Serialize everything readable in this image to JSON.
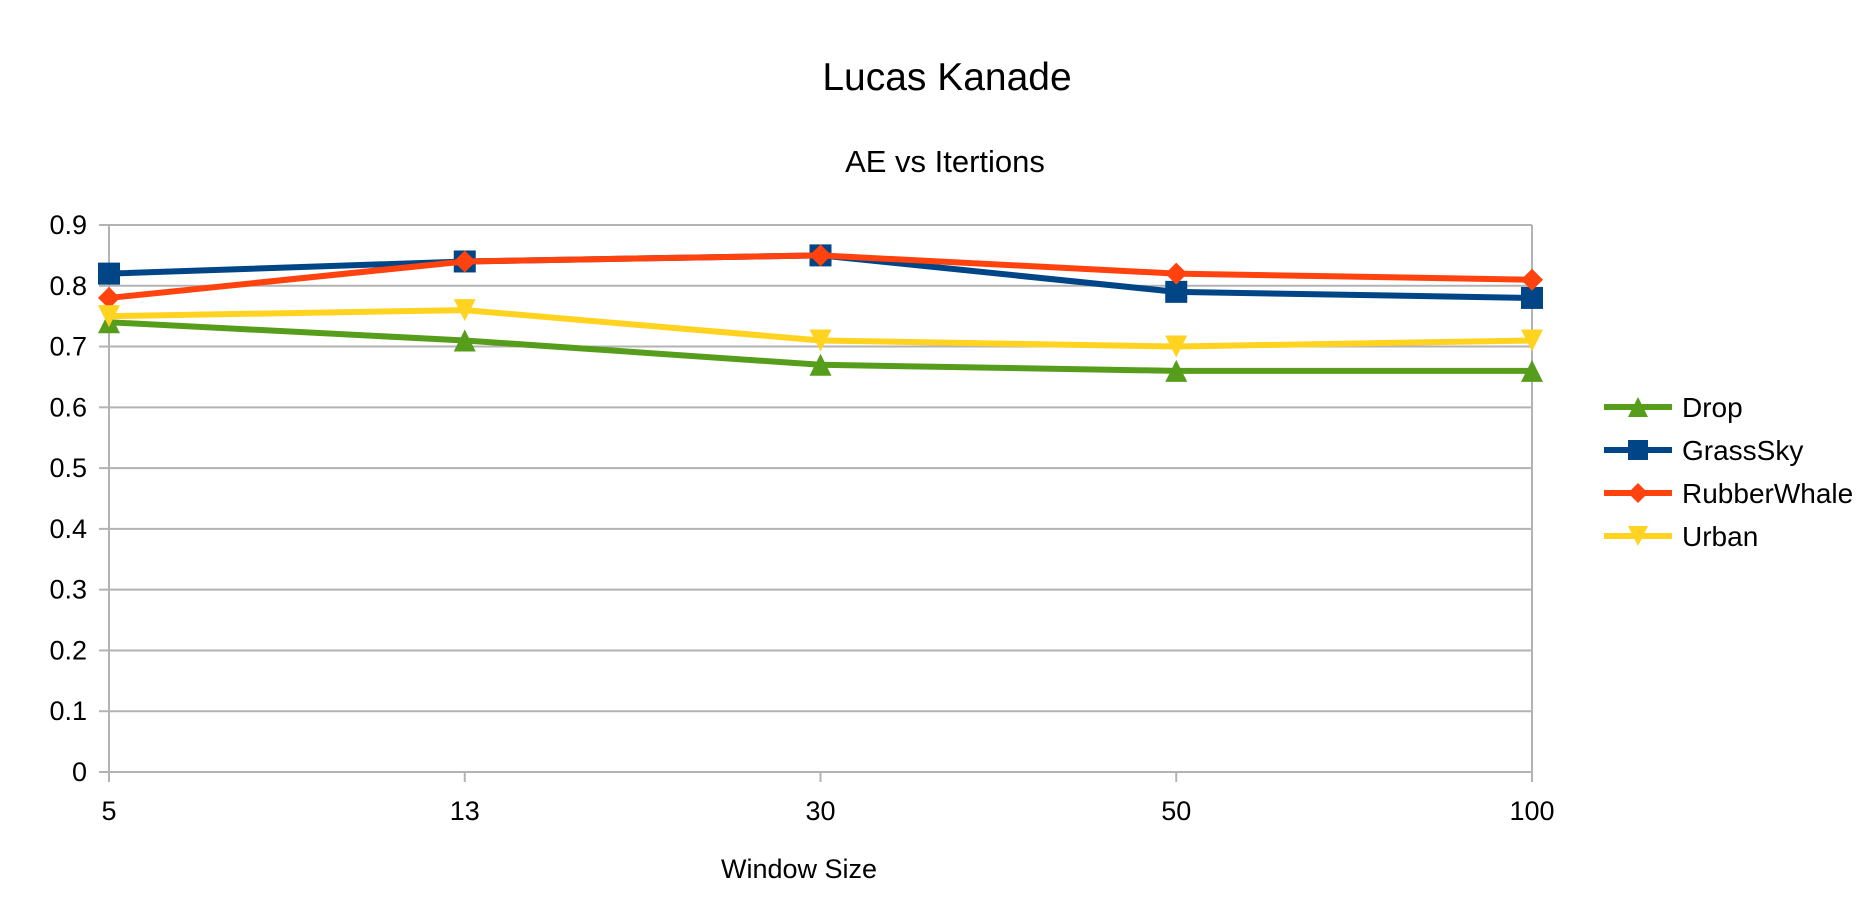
{
  "chart_data": {
    "type": "line",
    "title": "Lucas Kanade",
    "subtitle": "AE vs Itertions",
    "xlabel": "Window Size",
    "ylabel": "",
    "categories": [
      "5",
      "13",
      "30",
      "50",
      "100"
    ],
    "ylim": [
      0,
      0.9
    ],
    "yticks": [
      "0",
      "0.1",
      "0.2",
      "0.3",
      "0.4",
      "0.5",
      "0.6",
      "0.7",
      "0.8",
      "0.9"
    ],
    "grid": true,
    "legend_position": "right",
    "series": [
      {
        "name": "Drop",
        "color": "#579d1c",
        "marker": "triangle-up",
        "values": [
          0.74,
          0.71,
          0.67,
          0.66,
          0.66
        ]
      },
      {
        "name": "GrassSky",
        "color": "#004586",
        "marker": "square",
        "values": [
          0.82,
          0.84,
          0.85,
          0.79,
          0.78
        ]
      },
      {
        "name": "RubberWhale",
        "color": "#ff420e",
        "marker": "diamond",
        "values": [
          0.78,
          0.84,
          0.85,
          0.82,
          0.81
        ]
      },
      {
        "name": "Urban",
        "color": "#ffd320",
        "marker": "triangle-down",
        "values": [
          0.75,
          0.76,
          0.71,
          0.7,
          0.71
        ]
      }
    ]
  }
}
